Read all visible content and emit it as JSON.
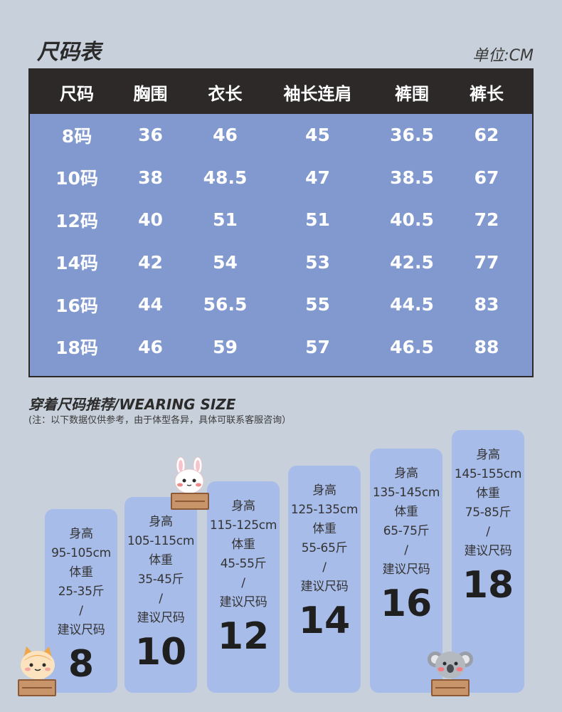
{
  "header": {
    "title": "尺码表",
    "unit": "单位:CM"
  },
  "table": {
    "columns": [
      "尺码",
      "胸围",
      "衣长",
      "袖长连肩",
      "裤围",
      "裤长"
    ],
    "rows": [
      [
        "8码",
        "36",
        "46",
        "45",
        "36.5",
        "62"
      ],
      [
        "10码",
        "38",
        "48.5",
        "47",
        "38.5",
        "67"
      ],
      [
        "12码",
        "40",
        "51",
        "51",
        "40.5",
        "72"
      ],
      [
        "14码",
        "42",
        "54",
        "53",
        "42.5",
        "77"
      ],
      [
        "16码",
        "44",
        "56.5",
        "55",
        "44.5",
        "83"
      ],
      [
        "18码",
        "46",
        "59",
        "57",
        "46.5",
        "88"
      ]
    ]
  },
  "recommend": {
    "title": "穿着尺码推荐/WEARING SIZE",
    "note": "(注：以下数据仅供参考，由于体型各异，具体可联系客服咨询）",
    "cards": [
      {
        "height_label": "身高",
        "height": "95-105cm",
        "weight_label": "体重",
        "weight": "25-35斤",
        "sep": "/",
        "size_label": "建议尺码",
        "size": "8"
      },
      {
        "height_label": "身高",
        "height": "105-115cm",
        "weight_label": "体重",
        "weight": "35-45斤",
        "sep": "/",
        "size_label": "建议尺码",
        "size": "10"
      },
      {
        "height_label": "身高",
        "height": "115-125cm",
        "weight_label": "体重",
        "weight": "45-55斤",
        "sep": "/",
        "size_label": "建议尺码",
        "size": "12"
      },
      {
        "height_label": "身高",
        "height": "125-135cm",
        "weight_label": "体重",
        "weight": "55-65斤",
        "sep": "/",
        "size_label": "建议尺码",
        "size": "14"
      },
      {
        "height_label": "身高",
        "height": "135-145cm",
        "weight_label": "体重",
        "weight": "65-75斤",
        "sep": "/",
        "size_label": "建议尺码",
        "size": "16"
      },
      {
        "height_label": "身高",
        "height": "145-155cm",
        "weight_label": "体重",
        "weight": "75-85斤",
        "sep": "/",
        "size_label": "建议尺码",
        "size": "18"
      }
    ]
  },
  "colors": {
    "background": "#c8d1db",
    "table_header": "#2d2929",
    "table_body": "#8199cf",
    "card": "#a8bce9"
  },
  "icons": [
    "cat-mascot-icon",
    "rabbit-mascot-icon",
    "koala-mascot-icon"
  ]
}
